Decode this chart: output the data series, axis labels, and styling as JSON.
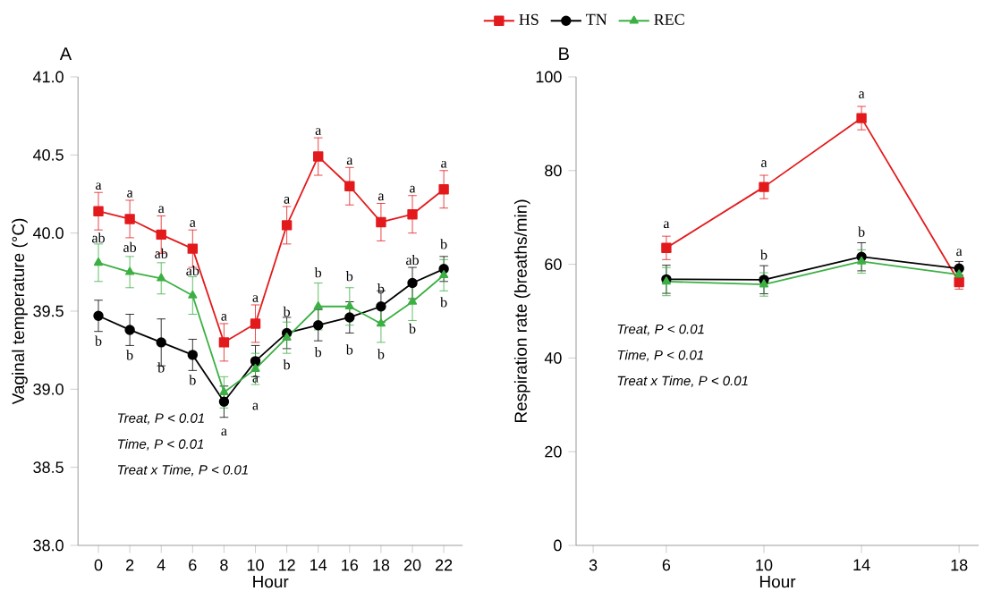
{
  "chart_data": [
    {
      "type": "line",
      "title": "A",
      "xlabel": "Hour",
      "ylabel": "Vaginal temperature (°C)",
      "legend": "top",
      "x": [
        0,
        2,
        4,
        6,
        8,
        10,
        12,
        14,
        16,
        18,
        20,
        22
      ],
      "xlim": [
        -1.3,
        23.2
      ],
      "xticks": [
        0,
        2,
        4,
        6,
        8,
        10,
        12,
        14,
        16,
        18,
        20,
        22
      ],
      "ylim": [
        38,
        41
      ],
      "yticks": [
        {
          "value": 38,
          "label": "38.0"
        },
        {
          "value": 38.5,
          "label": "38.5"
        },
        {
          "value": 39,
          "label": "39.0"
        },
        {
          "value": 39.5,
          "label": "39.5"
        },
        {
          "value": 40,
          "label": "40.0"
        },
        {
          "value": 40.5,
          "label": "40.5"
        },
        {
          "value": 41,
          "label": "41.0"
        }
      ],
      "series": [
        {
          "name": "HS",
          "color": "#e31a1c",
          "marker": "square",
          "values": [
            40.14,
            40.09,
            39.99,
            39.9,
            39.3,
            39.42,
            40.05,
            40.49,
            40.3,
            40.07,
            40.12,
            40.28
          ],
          "errors": [
            0.12,
            0.12,
            0.12,
            0.12,
            0.12,
            0.12,
            0.12,
            0.12,
            0.12,
            0.12,
            0.12,
            0.12
          ]
        },
        {
          "name": "TN",
          "color": "#000000",
          "marker": "circle",
          "values": [
            39.47,
            39.38,
            39.3,
            39.22,
            38.92,
            39.18,
            39.36,
            39.41,
            39.46,
            39.53,
            39.68,
            39.77
          ],
          "errors": [
            0.1,
            0.1,
            0.15,
            0.1,
            0.1,
            0.1,
            0.1,
            0.1,
            0.1,
            0.1,
            0.1,
            0.08
          ]
        },
        {
          "name": "REC",
          "color": "#3cb043",
          "marker": "triangle",
          "values": [
            39.81,
            39.75,
            39.71,
            39.6,
            38.98,
            39.13,
            39.33,
            39.53,
            39.53,
            39.42,
            39.56,
            39.73
          ],
          "errors": [
            0.12,
            0.1,
            0.1,
            0.12,
            0.1,
            0.1,
            0.1,
            0.15,
            0.12,
            0.12,
            0.12,
            0.1
          ]
        }
      ],
      "annotations": [
        "Treat, P < 0.01",
        "Time, P < 0.01",
        "Treat x Time, P < 0.01",
        {
          "text": "a",
          "x": 0,
          "y": 40.14
        },
        {
          "text": "a",
          "x": 2,
          "y": 40.09
        },
        {
          "text": "a",
          "x": 4,
          "y": 39.99
        },
        {
          "text": "a",
          "x": 6,
          "y": 39.9
        },
        {
          "text": "a",
          "x": 8,
          "y": 39.3
        },
        {
          "text": "a",
          "x": 10,
          "y": 39.42
        },
        {
          "text": "a",
          "x": 12,
          "y": 40.05
        },
        {
          "text": "a",
          "x": 14,
          "y": 40.49
        },
        {
          "text": "a",
          "x": 16,
          "y": 40.3
        },
        {
          "text": "a",
          "x": 18,
          "y": 40.07
        },
        {
          "text": "a",
          "x": 20,
          "y": 40.12
        },
        {
          "text": "a",
          "x": 22,
          "y": 40.28
        },
        {
          "text": "ab",
          "x": 0,
          "y": 39.81
        },
        {
          "text": "ab",
          "x": 2,
          "y": 39.75
        },
        {
          "text": "ab",
          "x": 4,
          "y": 39.71
        },
        {
          "text": "ab",
          "x": 6,
          "y": 39.6
        },
        {
          "text": "b",
          "x": 0,
          "y": 39.47
        },
        {
          "text": "b",
          "x": 2,
          "y": 39.38
        },
        {
          "text": "b",
          "x": 4,
          "y": 39.3
        },
        {
          "text": "b",
          "x": 6,
          "y": 39.22
        },
        {
          "text": "a",
          "x": 8,
          "y": 38.92
        },
        {
          "text": "a",
          "x": 10,
          "y": 39.18
        },
        {
          "text": "a",
          "x": 10,
          "y": 39.13
        },
        {
          "text": "b",
          "x": 12,
          "y": 39.36
        },
        {
          "text": "b",
          "x": 12,
          "y": 39.33
        },
        {
          "text": "b",
          "x": 14,
          "y": 39.53
        },
        {
          "text": "b",
          "x": 14,
          "y": 39.41
        },
        {
          "text": "b",
          "x": 16,
          "y": 39.53
        },
        {
          "text": "b",
          "x": 16,
          "y": 39.46
        },
        {
          "text": "b",
          "x": 18,
          "y": 39.53
        },
        {
          "text": "b",
          "x": 18,
          "y": 39.42
        },
        {
          "text": "ab",
          "x": 20,
          "y": 39.68
        },
        {
          "text": "b",
          "x": 20,
          "y": 39.56
        },
        {
          "text": "b",
          "x": 22,
          "y": 39.77
        },
        {
          "text": "b",
          "x": 22,
          "y": 39.73
        }
      ]
    },
    {
      "type": "line",
      "title": "B",
      "xlabel": "Hour",
      "ylabel": "Respiration rate (breaths/min)",
      "x": [
        6,
        10,
        14,
        18
      ],
      "xlim": [
        2.3,
        18.8
      ],
      "xticks": [
        3,
        6,
        10,
        14,
        18
      ],
      "ylim": [
        0,
        100
      ],
      "yticks": [
        0,
        20,
        40,
        60,
        80,
        100
      ],
      "series": [
        {
          "color": "#e31a1c",
          "marker": "square",
          "values": [
            63.5,
            76.5,
            91.2,
            56.2
          ],
          "errors": [
            2.5,
            2.5,
            2.5,
            1.5
          ]
        },
        {
          "color": "#000000",
          "marker": "circle",
          "values": [
            56.8,
            56.7,
            61.6,
            59.1
          ],
          "errors": [
            3,
            3,
            3,
            1.5
          ]
        },
        {
          "color": "#3cb043",
          "marker": "triangle",
          "values": [
            56.3,
            55.7,
            60.6,
            57.8
          ],
          "errors": [
            3,
            2.5,
            2.5,
            1.5
          ]
        }
      ],
      "annotations": [
        "Treat, P < 0.01",
        "Time, P < 0.01",
        "Treat x Time, P < 0.01",
        {
          "text": "a",
          "x": 6,
          "y": 63.5
        },
        {
          "text": "a",
          "x": 10,
          "y": 76.5
        },
        {
          "text": "a",
          "x": 14,
          "y": 91.2
        },
        {
          "text": "b",
          "x": 10,
          "y": 56.7
        },
        {
          "text": "b",
          "x": 14,
          "y": 61.6
        },
        {
          "text": "a",
          "x": 18,
          "y": 59.1
        }
      ]
    }
  ]
}
